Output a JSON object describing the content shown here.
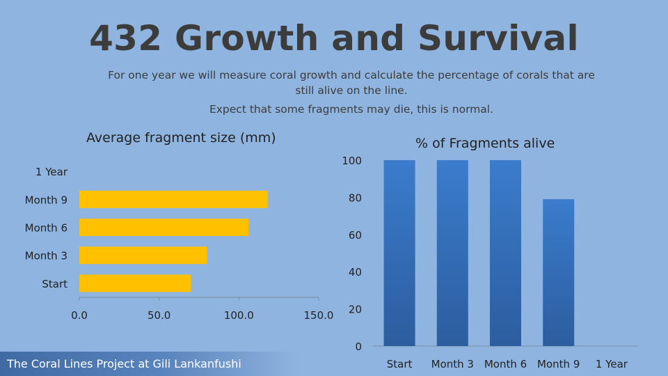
{
  "slide": {
    "title": "432 Growth and Survival",
    "subtitle": "For one year we will measure coral growth and calculate the percentage of corals that are still alive on the line.",
    "subtitle2": "Expect that some fragments may die, this is normal.",
    "footer": "The Coral Lines Project at Gili Lankanfushi"
  },
  "colors": {
    "bar_fill": "#ffc000",
    "column_fill_top": "#3b7ccc",
    "column_fill_bottom": "#2c5d9f",
    "axis": "#7a8ea8"
  },
  "chart_data": [
    {
      "type": "bar",
      "orientation": "horizontal",
      "title": "Average fragment size (mm)",
      "categories": [
        "Start",
        "Month 3",
        "Month 6",
        "Month 9",
        "1 Year"
      ],
      "values": [
        70,
        80,
        106,
        118,
        null
      ],
      "xlim": [
        0,
        150
      ],
      "ticks": [
        "0.0",
        "50.0",
        "100.0",
        "150.0"
      ],
      "xlabel": "",
      "ylabel": "",
      "grid": false
    },
    {
      "type": "bar",
      "orientation": "vertical",
      "title": "% of Fragments alive",
      "categories": [
        "Start",
        "Month 3",
        "Month 6",
        "Month 9",
        "1 Year"
      ],
      "values": [
        100,
        100,
        100,
        79,
        null
      ],
      "ylim": [
        0,
        100
      ],
      "ticks": [
        "0",
        "20",
        "40",
        "60",
        "80",
        "100"
      ],
      "xlabel": "",
      "ylabel": "",
      "grid": false
    }
  ]
}
